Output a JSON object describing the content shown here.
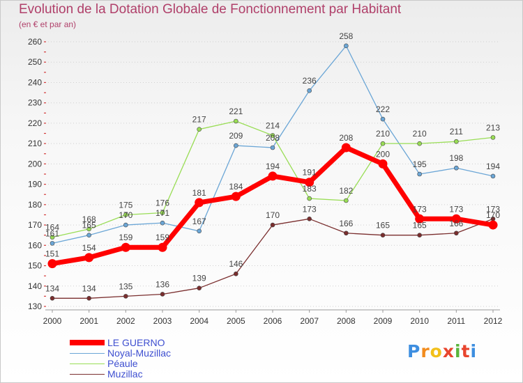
{
  "title": "Evolution de la Dotation Globale de Fonctionnement par Habitant",
  "subtitle": "(en € et par an)",
  "brand": {
    "text": "Proxiti",
    "colors": [
      "#3d8ee0",
      "#f28c1e",
      "#f2c01a",
      "#e8452e",
      "#5ab53c",
      "#e8452e",
      "#3d8ee0"
    ]
  },
  "chart_data": {
    "type": "line",
    "x": [
      "2000",
      "2001",
      "2002",
      "2003",
      "2004",
      "2005",
      "2006",
      "2007",
      "2008",
      "2009",
      "2010",
      "2011",
      "2012"
    ],
    "ylim": [
      130,
      260
    ],
    "yticks": [
      130,
      140,
      150,
      160,
      170,
      180,
      190,
      200,
      210,
      220,
      230,
      240,
      250,
      260
    ],
    "grid": "horizontal dotted",
    "legend_position": "bottom-left",
    "series": [
      {
        "name": "LE GUERNO",
        "color": "#ff0000",
        "width": 7,
        "marker": 6.5,
        "values": [
          151,
          154,
          159,
          159,
          181,
          184,
          194,
          191,
          208,
          200,
          173,
          173,
          170
        ]
      },
      {
        "name": "Noyal-Muzillac",
        "color": "#6ba6d6",
        "width": 1.3,
        "marker": 3,
        "values": [
          161,
          165,
          170,
          171,
          167,
          209,
          208,
          236,
          258,
          222,
          195,
          198,
          194
        ]
      },
      {
        "name": "Péaule",
        "color": "#99dd55",
        "width": 1.3,
        "marker": 3,
        "values": [
          164,
          168,
          175,
          176,
          217,
          221,
          214,
          183,
          182,
          210,
          210,
          211,
          213
        ]
      },
      {
        "name": "Muzillac",
        "color": "#7a2e2e",
        "width": 1.3,
        "marker": 3,
        "values": [
          134,
          134,
          135,
          136,
          139,
          146,
          170,
          173,
          166,
          165,
          165,
          166,
          173
        ]
      }
    ]
  }
}
